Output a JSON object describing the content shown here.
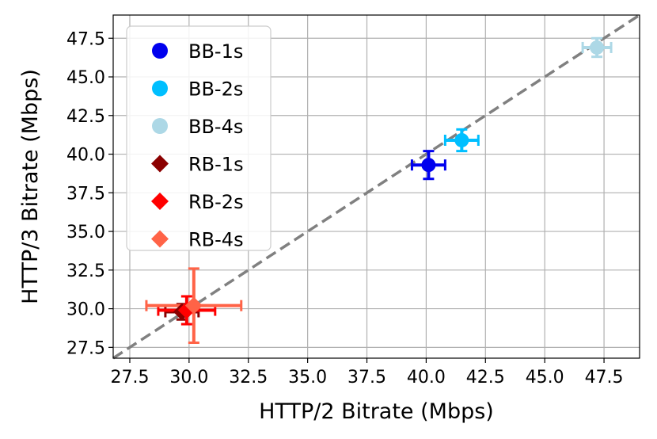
{
  "chart_data": {
    "type": "scatter",
    "title": "",
    "xlabel": "HTTP/2 Bitrate (Mbps)",
    "ylabel": "HTTP/3 Bitrate (Mbps)",
    "xlim": [
      26.8,
      49.0
    ],
    "ylim": [
      26.8,
      49.0
    ],
    "x_ticks": [
      "27.5",
      "30.0",
      "32.5",
      "35.0",
      "37.5",
      "40.0",
      "42.5",
      "45.0",
      "47.5"
    ],
    "y_ticks": [
      "27.5",
      "30.0",
      "32.5",
      "35.0",
      "37.5",
      "40.0",
      "42.5",
      "45.0",
      "47.5"
    ],
    "grid": true,
    "legend_position": "upper-left",
    "reference_line": {
      "style": "dashed",
      "color": "#808080",
      "from": [
        26.8,
        26.8
      ],
      "to": [
        49.0,
        49.0
      ]
    },
    "series": [
      {
        "name": "BB-1s",
        "marker": "circle",
        "color": "#0000ee",
        "x": 40.1,
        "y": 39.3,
        "xerr": 0.7,
        "yerr": 0.9
      },
      {
        "name": "BB-2s",
        "marker": "circle",
        "color": "#00bfff",
        "x": 41.5,
        "y": 40.9,
        "xerr": 0.7,
        "yerr": 0.7
      },
      {
        "name": "BB-4s",
        "marker": "circle",
        "color": "#add8e6",
        "x": 47.2,
        "y": 46.9,
        "xerr": 0.6,
        "yerr": 0.6
      },
      {
        "name": "RB-1s",
        "marker": "diamond",
        "color": "#8b0000",
        "x": 29.7,
        "y": 29.8,
        "xerr": 0.7,
        "yerr": 0.5
      },
      {
        "name": "RB-2s",
        "marker": "diamond",
        "color": "#ff0000",
        "x": 29.9,
        "y": 29.9,
        "xerr": 1.2,
        "yerr": 0.9
      },
      {
        "name": "RB-4s",
        "marker": "diamond",
        "color": "#ff6347",
        "x": 30.2,
        "y": 30.2,
        "xerr": 2.0,
        "yerr": 2.4
      }
    ]
  }
}
